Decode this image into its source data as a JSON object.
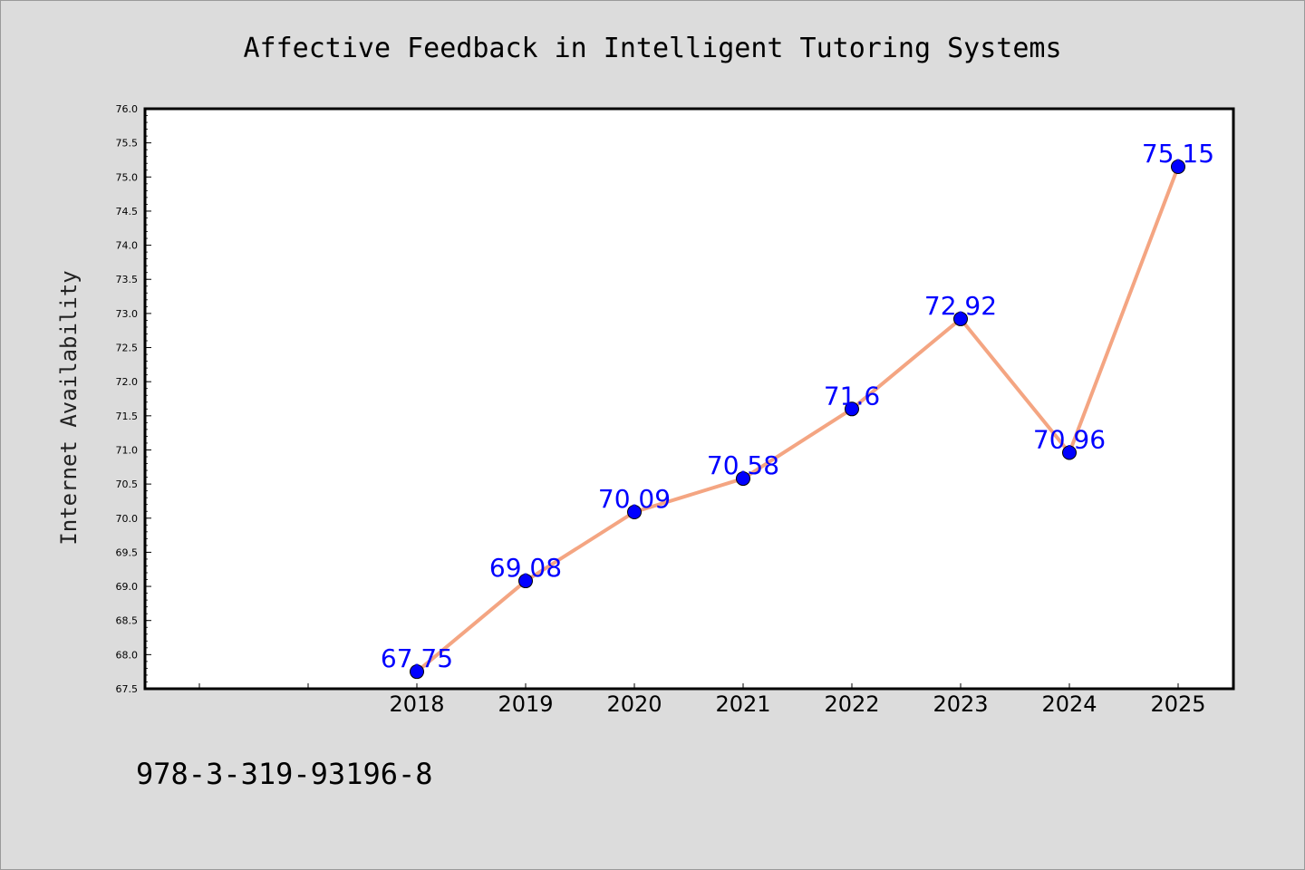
{
  "chart_data": {
    "type": "line",
    "title": "Affective Feedback in Intelligent Tutoring Systems",
    "xlabel": "",
    "ylabel": "Internet Availability",
    "categories": [
      "2018",
      "2019",
      "2020",
      "2021",
      "2022",
      "2023",
      "2024",
      "2025"
    ],
    "values": [
      67.75,
      69.08,
      70.09,
      70.58,
      71.6,
      72.92,
      70.96,
      75.15
    ],
    "data_labels": [
      "67.75",
      "69.08",
      "70.09",
      "70.58",
      "71.6",
      "72.92",
      "70.96",
      "75.15"
    ],
    "ylim": [
      67.5,
      76.0
    ],
    "yticks": [
      "67.5",
      "68.0",
      "68.5",
      "69.0",
      "69.5",
      "70.0",
      "70.5",
      "71.0",
      "71.5",
      "72.0",
      "72.5",
      "73.0",
      "73.5",
      "74.0",
      "74.5",
      "75.0",
      "75.5",
      "76.0"
    ],
    "grid": false,
    "line_color": "#f4a582",
    "marker_color": "#0000ff",
    "label_color": "#0000ff"
  },
  "footer": {
    "isbn": "978-3-319-93196-8"
  }
}
